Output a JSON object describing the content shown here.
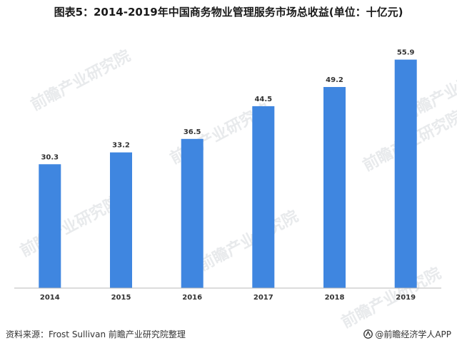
{
  "title": "图表5：2014-2019年中国商务物业管理服务市场总收益(单位：十亿元)",
  "footer": {
    "source": "资料来源：Frost Sullivan 前瞻产业研究院整理",
    "brand": "@前瞻经济学人APP"
  },
  "watermark": {
    "text": "前瞻产业研究院"
  },
  "colors": {
    "bar": "#3f86e0",
    "axis": "#b8b8b8",
    "label": "#333333"
  },
  "chart_data": {
    "type": "bar",
    "title": "图表5：2014-2019年中国商务物业管理服务市场总收益(单位：十亿元)",
    "categories": [
      "2014",
      "2015",
      "2016",
      "2017",
      "2018",
      "2019"
    ],
    "values": [
      30.3,
      33.2,
      36.5,
      44.5,
      49.2,
      55.9
    ],
    "data_labels": [
      "30.3",
      "33.2",
      "36.5",
      "44.5",
      "49.2",
      "55.9"
    ],
    "xlabel": "",
    "ylabel": "",
    "ylim": [
      0,
      63.5
    ],
    "grid": false,
    "legend": "none"
  }
}
